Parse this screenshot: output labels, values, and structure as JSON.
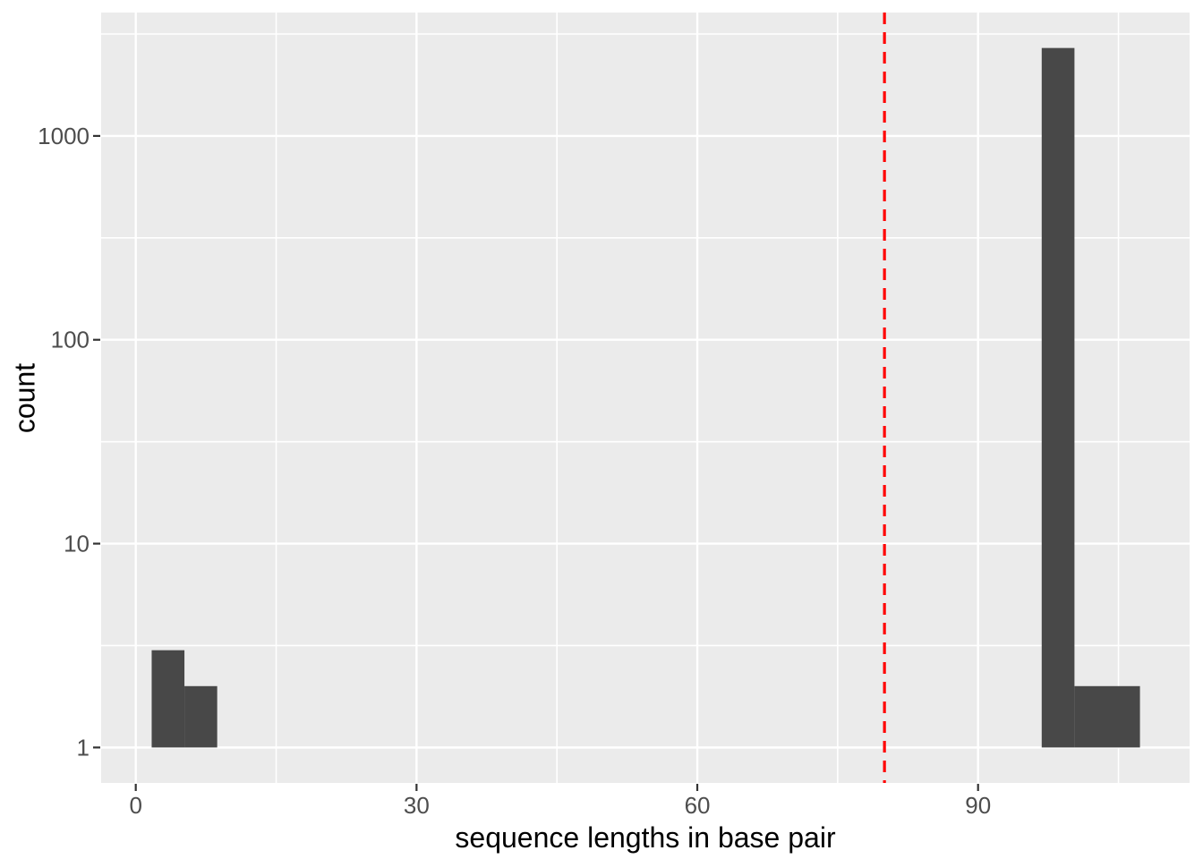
{
  "chart_data": {
    "type": "bar",
    "subtype": "histogram",
    "title": "",
    "xlabel": "sequence lengths in base pair",
    "ylabel": "count",
    "x_scale": "linear",
    "y_scale": "log10",
    "xlim": [
      -3.7,
      112.6
    ],
    "ylim": [
      0.67,
      4030
    ],
    "grid": true,
    "legend_position": "none",
    "x_ticks": [
      0,
      30,
      60,
      90
    ],
    "x_tick_labels": [
      "0",
      "30",
      "60",
      "90"
    ],
    "x_minor_gridlines": [
      15,
      45,
      75,
      105
    ],
    "y_ticks": [
      1,
      10,
      100,
      1000
    ],
    "y_tick_labels": [
      "1",
      "10",
      "100",
      "1000"
    ],
    "y_minor_gridlines": [
      3.162,
      31.62,
      316.2,
      3162
    ],
    "bar_base": 1,
    "bars": [
      {
        "x_start": 1.7,
        "x_end": 5.2,
        "count": 3
      },
      {
        "x_start": 5.2,
        "x_end": 8.7,
        "count": 2
      },
      {
        "x_start": 96.8,
        "x_end": 100.3,
        "count": 2700
      },
      {
        "x_start": 100.3,
        "x_end": 107.3,
        "count": 2
      }
    ],
    "vline": {
      "x": 80,
      "style": "dashed",
      "color": "#FF0000"
    },
    "colors": {
      "bar_fill": "#484848",
      "panel_background": "#EBEBEB",
      "gridline": "#FFFFFF",
      "tick_label": "#4D4D4D",
      "axis_title": "#000000",
      "tick_mark": "#333333",
      "figure_background": "#FFFFFF"
    }
  }
}
